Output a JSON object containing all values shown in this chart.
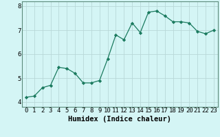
{
  "xlabel": "Humidex (Indice chaleur)",
  "x_values": [
    0,
    1,
    2,
    3,
    4,
    5,
    6,
    7,
    8,
    9,
    10,
    11,
    12,
    13,
    14,
    15,
    16,
    17,
    18,
    19,
    20,
    21,
    22,
    23
  ],
  "y_values": [
    4.2,
    4.25,
    4.6,
    4.7,
    5.45,
    5.4,
    5.2,
    4.8,
    4.8,
    4.9,
    5.8,
    6.8,
    6.6,
    7.3,
    6.9,
    7.75,
    7.8,
    7.6,
    7.35,
    7.35,
    7.3,
    6.95,
    6.85,
    7.0
  ],
  "line_color": "#1a7a5e",
  "marker": "D",
  "marker_size": 2.2,
  "bg_color": "#d4f5f5",
  "grid_color": "#b8d8d8",
  "ylim": [
    3.8,
    8.2
  ],
  "xlim": [
    -0.5,
    23.5
  ],
  "yticks": [
    4,
    5,
    6,
    7,
    8
  ],
  "xticks": [
    0,
    1,
    2,
    3,
    4,
    5,
    6,
    7,
    8,
    9,
    10,
    11,
    12,
    13,
    14,
    15,
    16,
    17,
    18,
    19,
    20,
    21,
    22,
    23
  ],
  "tick_fontsize": 6.5,
  "xlabel_fontsize": 7.5,
  "axes_color": "#5a8a7a",
  "line_width": 0.9
}
